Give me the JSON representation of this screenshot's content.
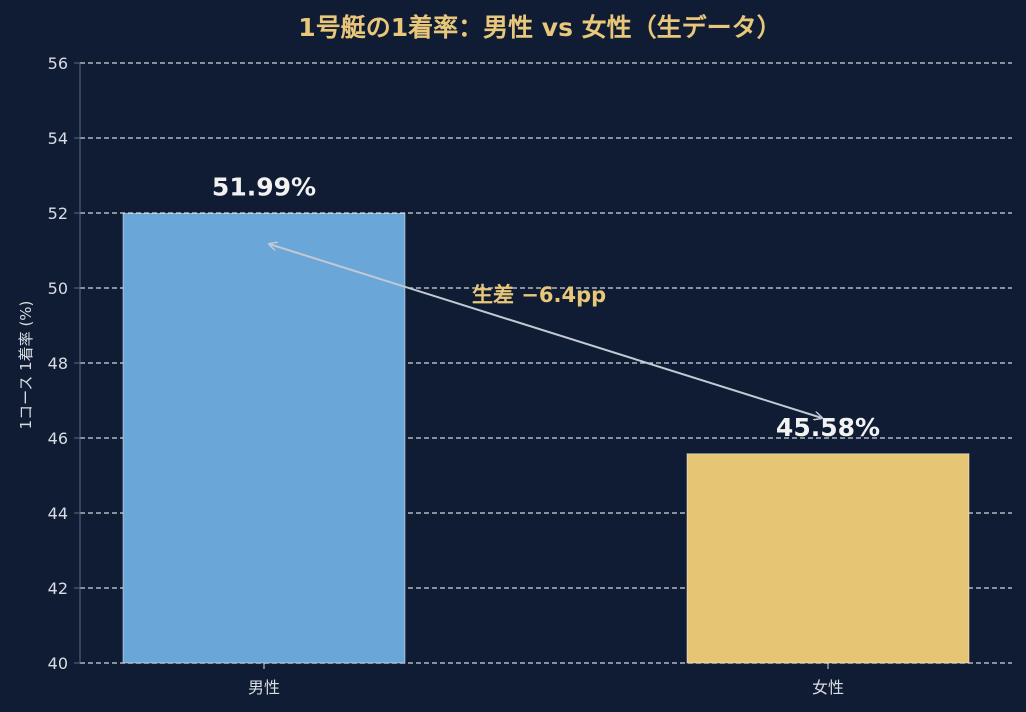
{
  "chart_data": {
    "type": "bar",
    "title": "1号艇の1着率：男性 vs 女性（生データ）",
    "xlabel": "",
    "ylabel": "1コース 1着率 (%)",
    "categories": [
      "男性",
      "女性"
    ],
    "values": [
      51.99,
      45.58
    ],
    "value_labels": [
      "51.99%",
      "45.58%"
    ],
    "ylim": [
      40,
      56
    ],
    "yticks": [
      40,
      42,
      44,
      46,
      48,
      50,
      52,
      54,
      56
    ],
    "grid": true,
    "annotation": {
      "text": "生差 −6.4pp",
      "from_category": "男性",
      "to_category": "女性"
    }
  },
  "colors": {
    "background": "#0f1c33",
    "bars": [
      "#6ba6d9",
      "#e6c675"
    ],
    "title": "#e9c77a",
    "annotation_text": "#e9c77a",
    "value_labels": "#f2f2f2",
    "tick_labels": "#d9dde3",
    "grid": "#e8ebef",
    "axis": "#5c6b82",
    "arrow": "#c2c9d2"
  }
}
